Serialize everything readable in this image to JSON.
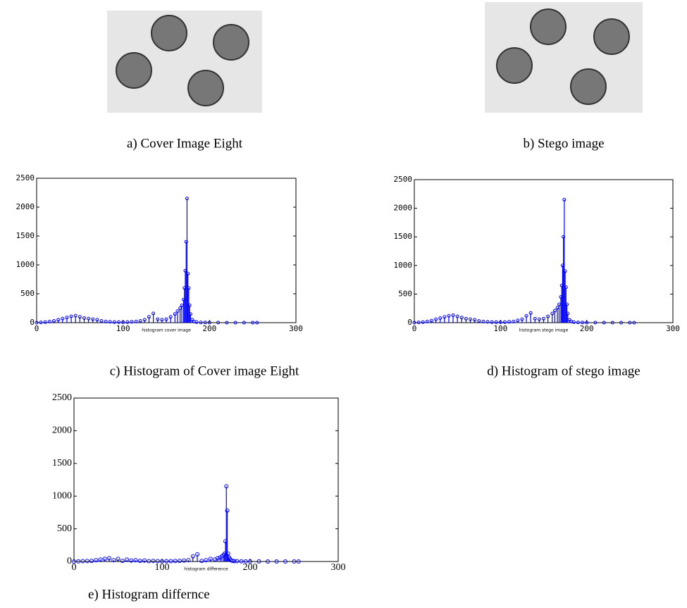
{
  "images": [
    {
      "caption": "a) Cover Image  Eight"
    },
    {
      "caption": "b)    Stego image"
    }
  ],
  "chart_data": [
    {
      "type": "stem",
      "caption": "c) Histogram of Cover image Eight",
      "xlabel": "histogram cover image",
      "color": "#0000ff",
      "x": [
        0,
        5,
        10,
        15,
        20,
        25,
        30,
        35,
        40,
        45,
        50,
        55,
        60,
        65,
        70,
        75,
        80,
        85,
        90,
        95,
        100,
        105,
        110,
        115,
        120,
        125,
        130,
        135,
        140,
        145,
        150,
        155,
        160,
        163,
        166,
        168,
        170,
        171,
        172,
        173,
        174,
        175,
        176,
        177,
        178,
        180,
        182,
        185,
        190,
        195,
        200,
        210,
        220,
        230,
        240,
        250,
        255
      ],
      "values": [
        0,
        5,
        10,
        20,
        30,
        50,
        70,
        90,
        110,
        120,
        100,
        80,
        70,
        60,
        50,
        30,
        20,
        15,
        10,
        10,
        8,
        10,
        15,
        20,
        30,
        50,
        100,
        160,
        60,
        50,
        60,
        100,
        150,
        200,
        250,
        300,
        400,
        600,
        900,
        1400,
        2150,
        850,
        600,
        300,
        150,
        50,
        20,
        10,
        5,
        3,
        2,
        1,
        0,
        0,
        0,
        0,
        0
      ],
      "xlim": [
        0,
        300
      ],
      "xticks": [
        0,
        100,
        200,
        300
      ],
      "ylim": [
        0,
        2500
      ],
      "yticks": [
        0,
        500,
        1000,
        1500,
        2000,
        2500
      ]
    },
    {
      "type": "stem",
      "caption": "d) Histogram of stego image",
      "xlabel": "histogram stego image",
      "color": "#0000ff",
      "x": [
        0,
        5,
        10,
        15,
        20,
        25,
        30,
        35,
        40,
        45,
        50,
        55,
        60,
        65,
        70,
        75,
        80,
        85,
        90,
        95,
        100,
        105,
        110,
        115,
        120,
        125,
        130,
        135,
        140,
        145,
        150,
        155,
        160,
        163,
        166,
        168,
        170,
        171,
        172,
        173,
        174,
        175,
        176,
        177,
        178,
        180,
        182,
        185,
        190,
        195,
        200,
        210,
        220,
        230,
        240,
        250,
        255
      ],
      "values": [
        0,
        5,
        10,
        20,
        35,
        60,
        80,
        100,
        120,
        130,
        110,
        90,
        70,
        60,
        50,
        30,
        20,
        15,
        10,
        10,
        8,
        10,
        15,
        20,
        40,
        60,
        120,
        170,
        70,
        60,
        70,
        110,
        160,
        210,
        260,
        320,
        450,
        650,
        1000,
        1500,
        2150,
        900,
        620,
        320,
        160,
        50,
        20,
        10,
        5,
        3,
        2,
        1,
        0,
        0,
        0,
        0,
        0
      ],
      "xlim": [
        0,
        300
      ],
      "xticks": [
        0,
        100,
        200,
        300
      ],
      "ylim": [
        0,
        2500
      ],
      "yticks": [
        0,
        500,
        1000,
        1500,
        2000,
        2500
      ]
    },
    {
      "type": "stem",
      "caption": "e) Histogram differnce",
      "xlabel": "histogram difference",
      "color": "#0000ff",
      "x": [
        0,
        5,
        10,
        15,
        20,
        25,
        30,
        35,
        40,
        45,
        50,
        55,
        60,
        65,
        70,
        75,
        80,
        85,
        90,
        95,
        100,
        105,
        110,
        115,
        120,
        125,
        130,
        135,
        140,
        145,
        150,
        155,
        160,
        163,
        166,
        168,
        170,
        171,
        172,
        173,
        174,
        175,
        176,
        177,
        178,
        180,
        182,
        185,
        190,
        195,
        200,
        210,
        220,
        230,
        240,
        250,
        255
      ],
      "values": [
        0,
        2,
        5,
        8,
        10,
        20,
        30,
        40,
        50,
        20,
        40,
        10,
        30,
        15,
        20,
        10,
        15,
        5,
        10,
        5,
        3,
        5,
        5,
        8,
        10,
        15,
        20,
        80,
        110,
        10,
        20,
        40,
        30,
        50,
        60,
        80,
        100,
        120,
        310,
        1150,
        780,
        120,
        60,
        40,
        20,
        10,
        5,
        5,
        3,
        2,
        1,
        1,
        0,
        0,
        0,
        0,
        0
      ],
      "xlim": [
        0,
        300
      ],
      "xticks": [
        0,
        100,
        200,
        300
      ],
      "ylim": [
        0,
        2500
      ],
      "yticks": [
        0,
        500,
        1000,
        1500,
        2000,
        2500
      ]
    }
  ]
}
